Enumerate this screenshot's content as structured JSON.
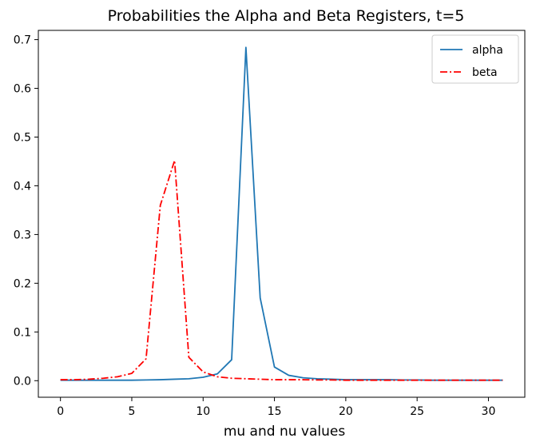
{
  "chart_data": {
    "type": "line",
    "title": "Probabilities the Alpha and Beta Registers, t=5",
    "xlabel": "mu and nu values",
    "ylabel": "",
    "xlim": [
      -1.55,
      32.55
    ],
    "ylim": [
      -0.034,
      0.719
    ],
    "xticks": [
      0,
      5,
      10,
      15,
      20,
      25,
      30
    ],
    "yticks": [
      0.0,
      0.1,
      0.2,
      0.3,
      0.4,
      0.5,
      0.6,
      0.7
    ],
    "xtick_labels": [
      "0",
      "5",
      "10",
      "15",
      "20",
      "25",
      "30"
    ],
    "ytick_labels": [
      "0.0",
      "0.1",
      "0.2",
      "0.3",
      "0.4",
      "0.5",
      "0.6",
      "0.7"
    ],
    "legend_position": "top-right",
    "x": [
      0,
      1,
      2,
      3,
      4,
      5,
      6,
      7,
      8,
      9,
      10,
      11,
      12,
      13,
      14,
      15,
      16,
      17,
      18,
      19,
      20,
      21,
      22,
      23,
      24,
      25,
      26,
      27,
      28,
      29,
      30,
      31
    ],
    "series": [
      {
        "name": "alpha",
        "color": "#1f77b4",
        "style": "solid",
        "values": [
          0.001,
          0.001,
          0.001,
          0.001,
          0.001,
          0.001,
          0.0015,
          0.002,
          0.003,
          0.004,
          0.007,
          0.014,
          0.043,
          0.684,
          0.17,
          0.028,
          0.011,
          0.006,
          0.004,
          0.003,
          0.002,
          0.002,
          0.002,
          0.002,
          0.0015,
          0.0015,
          0.001,
          0.001,
          0.001,
          0.001,
          0.001,
          0.001
        ]
      },
      {
        "name": "beta",
        "color": "#ff0000",
        "style": "dashdot",
        "values": [
          0.002,
          0.002,
          0.003,
          0.005,
          0.008,
          0.015,
          0.045,
          0.36,
          0.452,
          0.048,
          0.018,
          0.008,
          0.005,
          0.004,
          0.003,
          0.002,
          0.002,
          0.002,
          0.0015,
          0.0015,
          0.001,
          0.001,
          0.001,
          0.001,
          0.001,
          0.001,
          0.001,
          0.001,
          0.001,
          0.001,
          0.001,
          0.001
        ]
      }
    ]
  }
}
